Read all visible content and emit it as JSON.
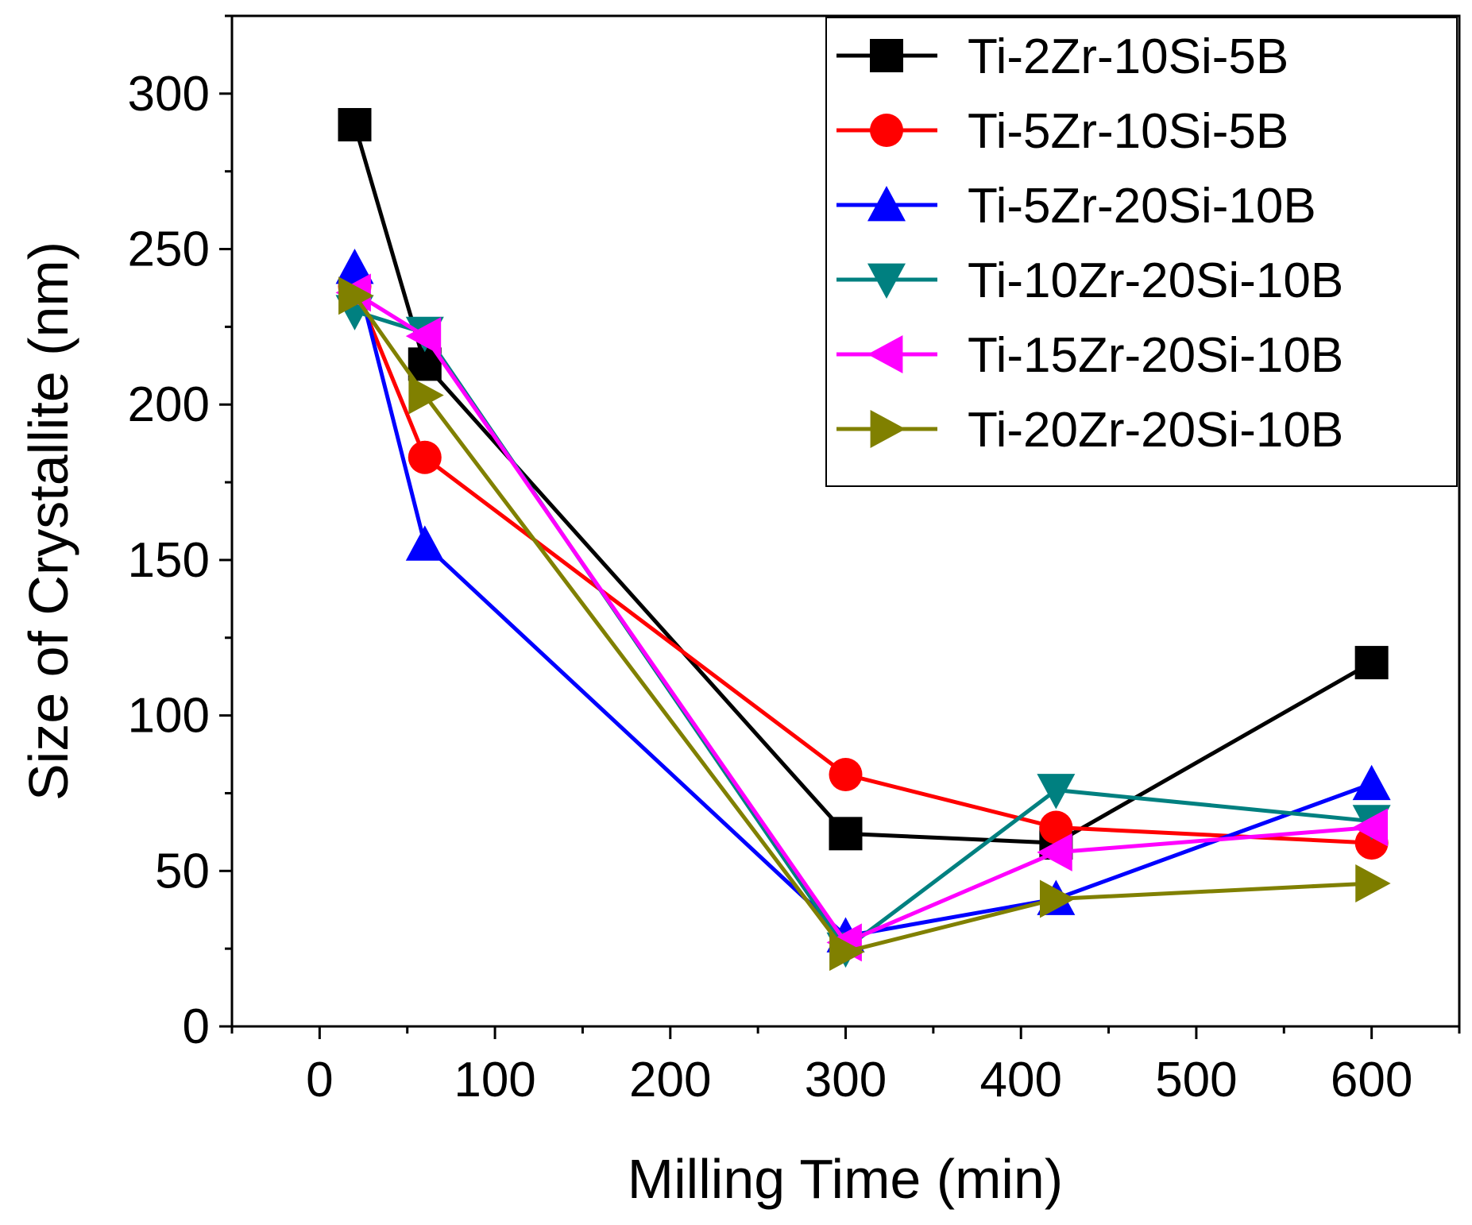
{
  "chart_data": {
    "type": "line",
    "title": "",
    "xlabel": "Milling Time (min)",
    "ylabel": "Size of Crystallite (nm)",
    "xlim": [
      -50,
      650
    ],
    "ylim": [
      0,
      325
    ],
    "x_ticks": [
      0,
      100,
      200,
      300,
      400,
      500,
      600
    ],
    "x_tick_labels": [
      "0",
      "100",
      "200",
      "300",
      "400",
      "500",
      "600"
    ],
    "y_ticks": [
      0,
      50,
      100,
      150,
      200,
      250,
      300
    ],
    "y_tick_labels": [
      "0",
      "50",
      "100",
      "150",
      "200",
      "250",
      "300"
    ],
    "legend_position": "top-right",
    "x": [
      20,
      60,
      300,
      420,
      600
    ],
    "series": [
      {
        "name": "Ti-2Zr-10Si-5B",
        "color": "#000000",
        "marker": "square",
        "values": [
          290,
          213,
          62,
          59,
          117
        ]
      },
      {
        "name": "Ti-5Zr-10Si-5B",
        "color": "#ff0000",
        "marker": "circle",
        "values": [
          238,
          183,
          81,
          64,
          59
        ]
      },
      {
        "name": "Ti-5Zr-20Si-10B",
        "color": "#0000ff",
        "marker": "triangle-up",
        "values": [
          244,
          155,
          29,
          41,
          78
        ]
      },
      {
        "name": "Ti-10Zr-20Si-10B",
        "color": "#008080",
        "marker": "triangle-down",
        "values": [
          230,
          223,
          25,
          76,
          66
        ]
      },
      {
        "name": "Ti-15Zr-20Si-10B",
        "color": "#ff00ff",
        "marker": "triangle-left",
        "values": [
          236,
          222,
          27,
          56,
          64
        ]
      },
      {
        "name": "Ti-20Zr-20Si-10B",
        "color": "#808000",
        "marker": "triangle-right",
        "values": [
          235,
          203,
          24,
          41,
          46
        ]
      }
    ]
  }
}
